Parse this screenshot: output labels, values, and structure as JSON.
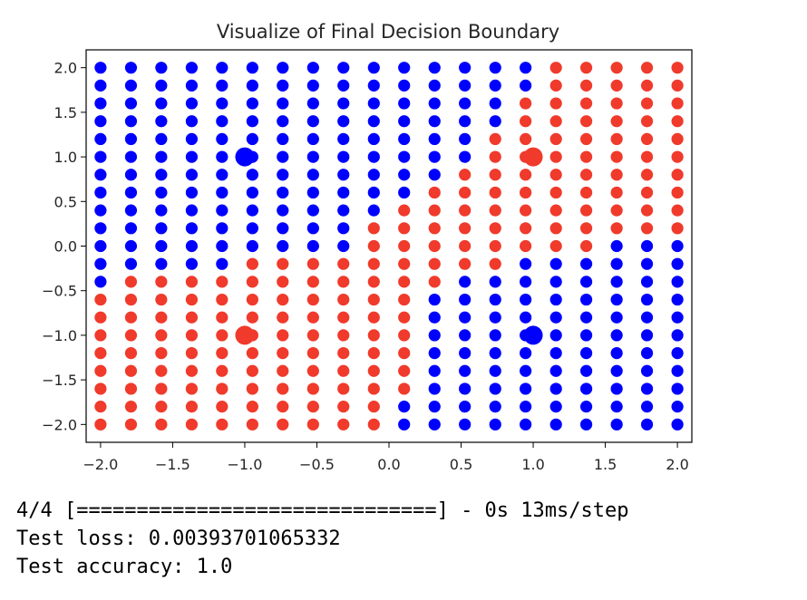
{
  "chart_data": {
    "type": "scatter",
    "title": "Visualize of Final Decision Boundary",
    "xlabel": "",
    "ylabel": "",
    "xlim": [
      -2.1,
      2.1
    ],
    "ylim": [
      -2.2,
      2.2
    ],
    "xticks": [
      -2.0,
      -1.5,
      -1.0,
      -0.5,
      0.0,
      0.5,
      1.0,
      1.5,
      2.0
    ],
    "yticks": [
      -2.0,
      -1.5,
      -1.0,
      -0.5,
      0.0,
      0.5,
      1.0,
      1.5,
      2.0
    ],
    "xtick_labels": [
      "−2.0",
      "−1.5",
      "−1.0",
      "−0.5",
      "0.0",
      "0.5",
      "1.0",
      "1.5",
      "2.0"
    ],
    "ytick_labels": [
      "−2.0",
      "−1.5",
      "−1.0",
      "−0.5",
      "0.0",
      "0.5",
      "1.0",
      "1.5",
      "2.0"
    ],
    "grid": false,
    "grid_x": [
      -2.0,
      -1.789,
      -1.579,
      -1.368,
      -1.158,
      -0.947,
      -0.737,
      -0.526,
      -0.316,
      -0.105,
      0.105,
      0.316,
      0.526,
      0.737,
      0.947,
      1.158,
      1.368,
      1.579,
      1.789,
      2.0
    ],
    "grid_y": [
      2.0,
      1.8,
      1.6,
      1.4,
      1.2,
      1.0,
      0.8,
      0.6,
      0.4,
      0.2,
      0.0,
      -0.2,
      -0.4,
      -0.6,
      -0.8,
      -1.0,
      -1.2,
      -1.4,
      -1.6,
      -1.8,
      -2.0
    ],
    "grid_classes": [
      "BBBBBBBBBBBBBBBRRRRR",
      "BBBBBBBBBBBBBBBRRRRR",
      "BBBBBBBBBBBBBBRRRRRR",
      "BBBBBBBBBBBBBBRRRRRR",
      "BBBBBBBBBBBBBRRRRRRR",
      "BBBBBBBBBBBBBRRRRRRR",
      "BBBBBBBBBBBBRRRRRRRR",
      "BBBBBBBBBBBRRRRRRRRR",
      "BBBBBBBBBBRRRRRRRRRR",
      "BBBBBBBBBRRRRRRRRRRR",
      "BBBBBBBBBRRRRRRRRBBB",
      "BBBBBRRRRRRRRRBBBBBB",
      "BRRRRRRRRRRRBBBBBBBB",
      "RRRRRRRRRRRBBBBBBBBB",
      "RRRRRRRRRRRBBBBBBBBB",
      "RRRRRRRRRRRBBBBBBBBB",
      "RRRRRRRRRRRBBBBBBBBB",
      "RRRRRRRRRRRBBBBBBBBB",
      "RRRRRRRRRRRBBBBBBBBB",
      "RRRRRRRRRRBBBBBBBBBB",
      "RRRRRRRRRRBBBBBBBBBB"
    ],
    "series": [
      {
        "class": "B",
        "color": "#0000ff",
        "large_points": [
          [
            -1,
            1
          ],
          [
            1,
            -1
          ]
        ]
      },
      {
        "class": "R",
        "color": "#f03a2b",
        "large_points": [
          [
            1,
            1
          ],
          [
            -1,
            -1
          ]
        ]
      }
    ]
  },
  "console": {
    "progress_line": "4/4 [==============================] - 0s 13ms/step",
    "loss_line": "Test loss: 0.00393701065332",
    "accuracy_line": "Test accuracy: 1.0"
  }
}
